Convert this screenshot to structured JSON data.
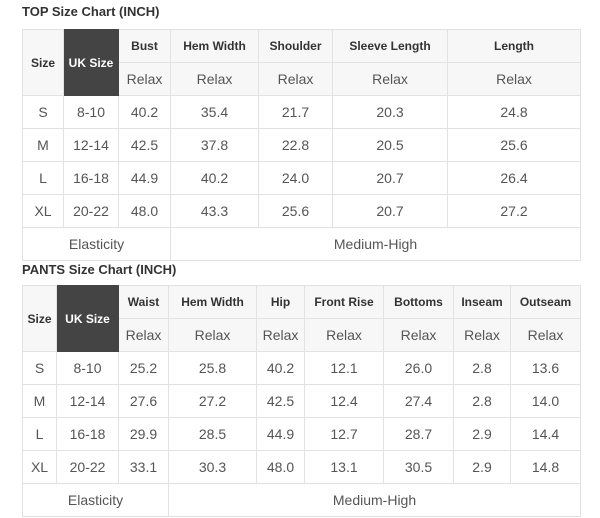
{
  "top": {
    "title": "TOP Size Chart (INCH)",
    "size_label": "Size",
    "uk_label": "UK Size",
    "columns": [
      "Bust",
      "Hem Width",
      "Shoulder",
      "Sleeve Length",
      "Length"
    ],
    "sub_label": "Relax",
    "rows": [
      {
        "size": "S",
        "uk": "8-10",
        "values": [
          "40.2",
          "35.4",
          "21.7",
          "20.3",
          "24.8"
        ]
      },
      {
        "size": "M",
        "uk": "12-14",
        "values": [
          "42.5",
          "37.8",
          "22.8",
          "20.5",
          "25.6"
        ]
      },
      {
        "size": "L",
        "uk": "16-18",
        "values": [
          "44.9",
          "40.2",
          "24.0",
          "20.7",
          "26.4"
        ]
      },
      {
        "size": "XL",
        "uk": "20-22",
        "values": [
          "48.0",
          "43.3",
          "25.6",
          "20.7",
          "27.2"
        ]
      }
    ],
    "elasticity_label": "Elasticity",
    "elasticity_value": "Medium-High"
  },
  "pants": {
    "title": "PANTS Size Chart (INCH)",
    "size_label": "Size",
    "uk_label": "UK Size",
    "columns": [
      "Waist",
      "Hem Width",
      "Hip",
      "Front Rise",
      "Bottoms",
      "Inseam",
      "Outseam"
    ],
    "sub_label": "Relax",
    "rows": [
      {
        "size": "S",
        "uk": "8-10",
        "values": [
          "25.2",
          "25.8",
          "40.2",
          "12.1",
          "26.0",
          "2.8",
          "13.6"
        ]
      },
      {
        "size": "M",
        "uk": "12-14",
        "values": [
          "27.6",
          "27.2",
          "42.5",
          "12.4",
          "27.4",
          "2.8",
          "14.0"
        ]
      },
      {
        "size": "L",
        "uk": "16-18",
        "values": [
          "29.9",
          "28.5",
          "44.9",
          "12.7",
          "28.7",
          "2.9",
          "14.4"
        ]
      },
      {
        "size": "XL",
        "uk": "20-22",
        "values": [
          "33.1",
          "30.3",
          "48.0",
          "13.1",
          "30.5",
          "2.9",
          "14.8"
        ]
      }
    ],
    "elasticity_label": "Elasticity",
    "elasticity_value": "Medium-High"
  }
}
